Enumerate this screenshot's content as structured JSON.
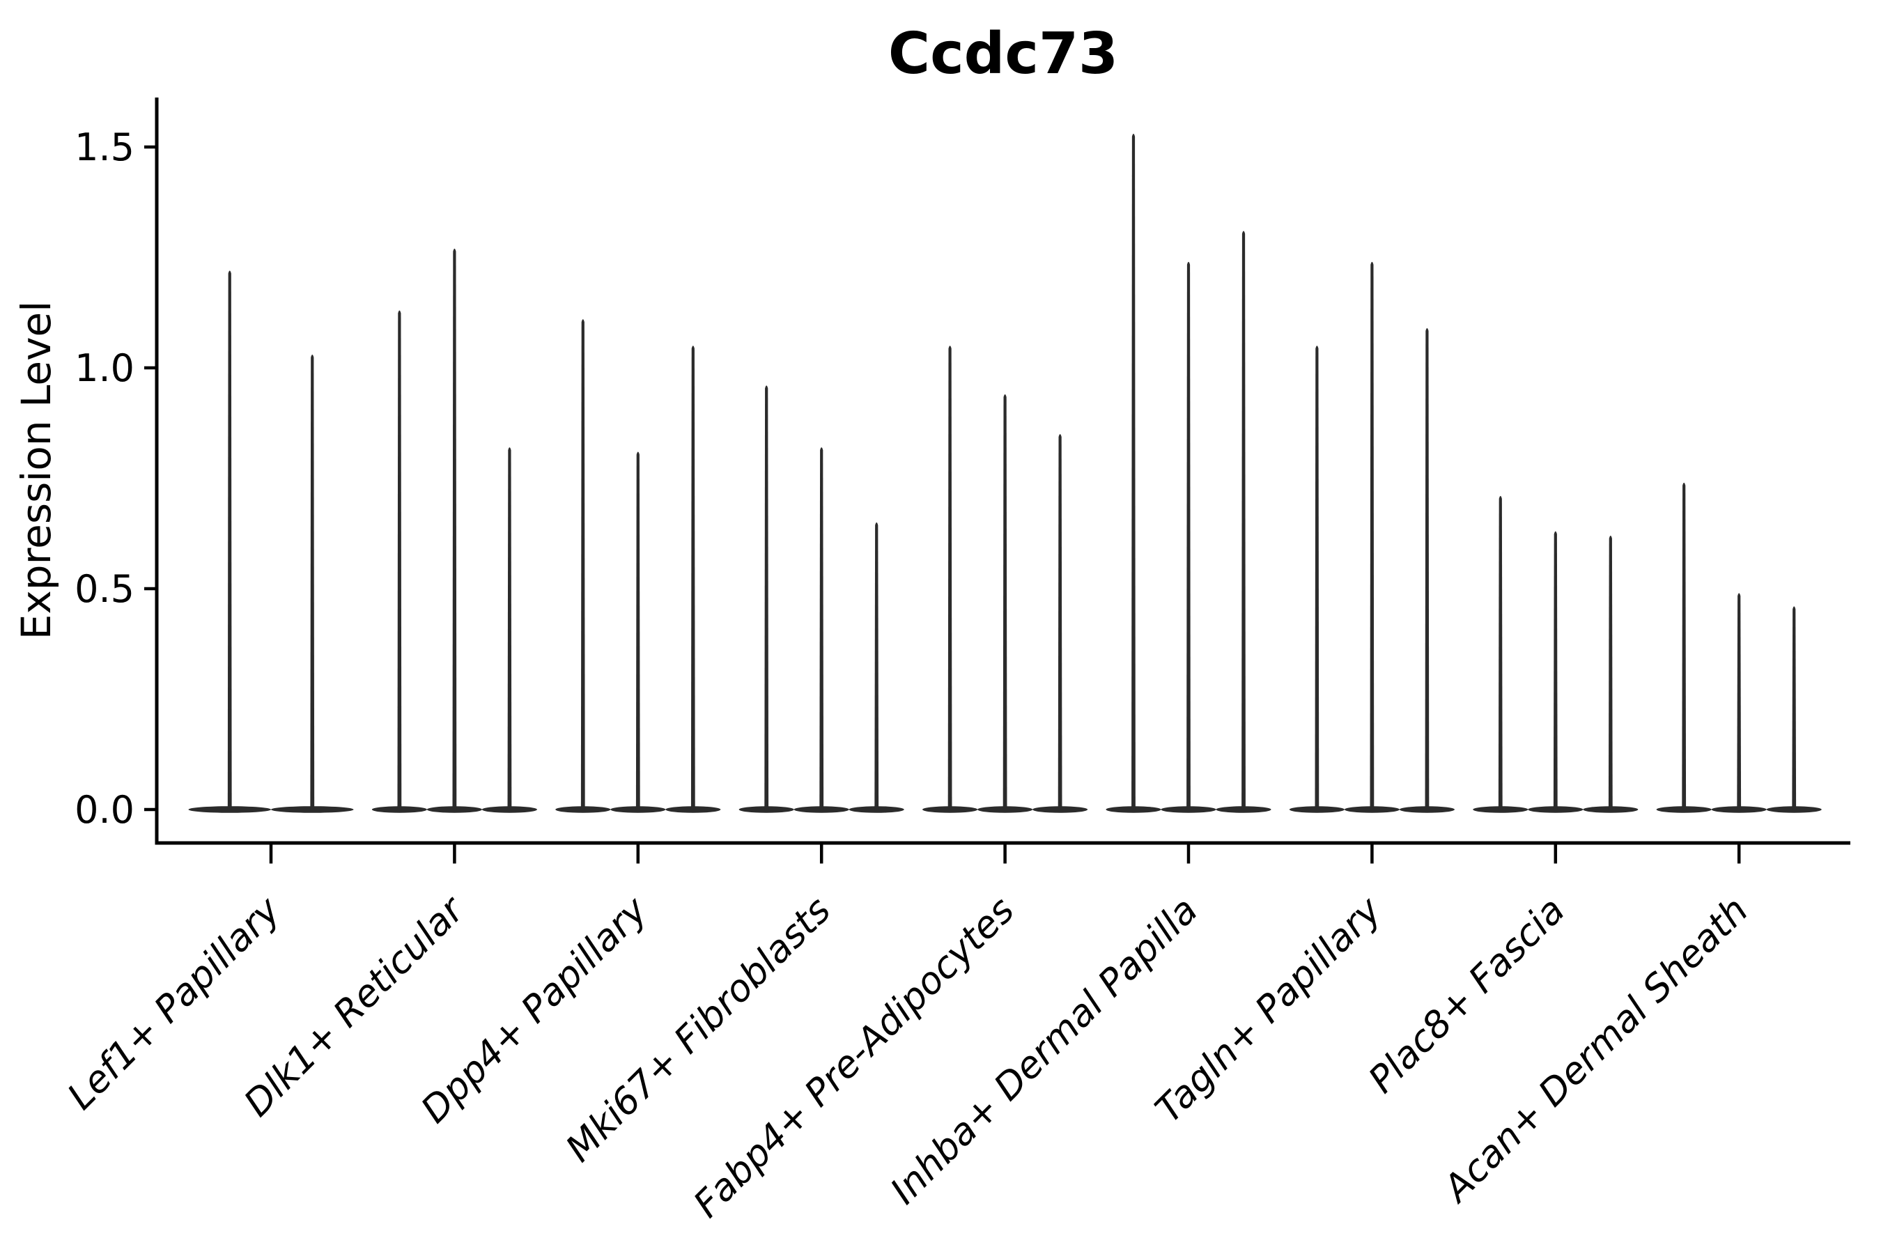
{
  "chart_data": {
    "type": "violin",
    "title": "Ccdc73",
    "xlabel": "",
    "ylabel": "Expression Level",
    "ylim": [
      -0.08,
      1.61
    ],
    "yticks": [
      0.0,
      0.5,
      1.0,
      1.5
    ],
    "ytick_labels": [
      "0.0",
      "0.5",
      "1.0",
      "1.5"
    ],
    "grid": false,
    "legend_position": "none",
    "violin_style": "needle-thin violins with wide flat base at zero (most cells zero expression)",
    "categories": [
      "Lef1+ Papillary",
      "Dlk1+ Reticular",
      "Dpp4+ Papillary",
      "Mki67+ Fibroblasts",
      "Fabp4+ Pre-Adipocytes",
      "Inhba+ Dermal Papilla",
      "Tagln+ Papillary",
      "Plac8+ Fascia",
      "Acan+ Dermal Sheath"
    ],
    "groups": [
      {
        "category": "Lef1+ Papillary",
        "violin_peaks": [
          1.22,
          1.03
        ]
      },
      {
        "category": "Dlk1+ Reticular",
        "violin_peaks": [
          1.13,
          1.27,
          0.82
        ]
      },
      {
        "category": "Dpp4+ Papillary",
        "violin_peaks": [
          1.11,
          0.81,
          1.05
        ]
      },
      {
        "category": "Mki67+ Fibroblasts",
        "violin_peaks": [
          0.96,
          0.82,
          0.65
        ]
      },
      {
        "category": "Fabp4+ Pre-Adipocytes",
        "violin_peaks": [
          1.05,
          0.94,
          0.85
        ]
      },
      {
        "category": "Inhba+ Dermal Papilla",
        "violin_peaks": [
          1.53,
          1.24,
          1.31
        ]
      },
      {
        "category": "Tagln+ Papillary",
        "violin_peaks": [
          1.05,
          1.24,
          1.09
        ]
      },
      {
        "category": "Plac8+ Fascia",
        "violin_peaks": [
          0.71,
          0.63,
          0.62
        ]
      },
      {
        "category": "Acan+ Dermal Sheath",
        "violin_peaks": [
          0.74,
          0.49,
          0.46
        ]
      }
    ],
    "colors": {
      "violin_fill": "#2b2b2b",
      "axis": "#000000",
      "text": "#000000",
      "background": "#ffffff"
    }
  }
}
